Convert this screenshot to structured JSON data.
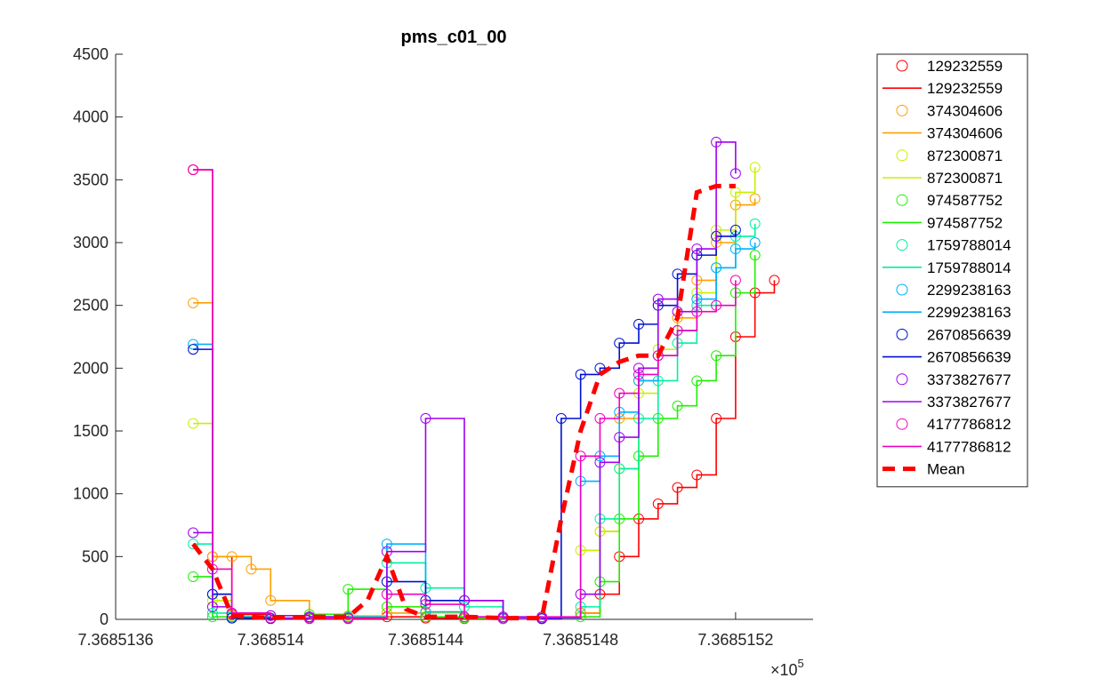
{
  "chart_data": {
    "type": "scatter",
    "title": "pms_c01_00",
    "xlabel": "",
    "ylabel": "",
    "x_exponent_label": "×10",
    "x_exponent_power": "5",
    "xlim": [
      7.3685136,
      7.3685154
    ],
    "ylim": [
      0,
      4500
    ],
    "x_ticks": [
      7.3685136,
      7.368514,
      7.3685144,
      7.3685148,
      7.3685152
    ],
    "x_tick_labels": [
      "7.3685136",
      "7.368514",
      "7.3685144",
      "7.3685148",
      "7.3685152"
    ],
    "y_ticks": [
      0,
      500,
      1000,
      1500,
      2000,
      2500,
      3000,
      3500,
      4000,
      4500
    ],
    "y_tick_labels": [
      "0",
      "500",
      "1000",
      "1500",
      "2000",
      "2500",
      "3000",
      "3500",
      "4000",
      "4500"
    ],
    "grid": false,
    "legend_position": "outside-right",
    "series": [
      {
        "name": "129232559",
        "color": "#ff0000",
        "x": [
          7.3685138,
          7.36851385,
          7.3685139,
          7.368514,
          7.3685141,
          7.3685142,
          7.3685143,
          7.3685144,
          7.3685145,
          7.3685146,
          7.3685147,
          7.3685148,
          7.36851485,
          7.3685149,
          7.36851495,
          7.368515,
          7.36851505,
          7.3685151,
          7.36851515,
          7.3685152,
          7.36851525,
          7.3685153
        ],
        "y": [
          3580,
          500,
          40,
          10,
          5,
          5,
          20,
          10,
          5,
          5,
          5,
          50,
          200,
          500,
          800,
          920,
          1050,
          1150,
          1600,
          2250,
          2600,
          2700
        ]
      },
      {
        "name": "374304606",
        "color": "#ff9f00",
        "x": [
          7.3685138,
          7.36851385,
          7.3685139,
          7.36851395,
          7.368514,
          7.3685141,
          7.3685142,
          7.3685143,
          7.3685144,
          7.3685145,
          7.3685146,
          7.3685147,
          7.3685148,
          7.36851485,
          7.3685149,
          7.36851495,
          7.368515,
          7.36851505,
          7.3685151,
          7.36851515,
          7.3685152,
          7.36851525
        ],
        "y": [
          2520,
          500,
          500,
          400,
          150,
          20,
          20,
          50,
          20,
          10,
          5,
          5,
          50,
          700,
          1600,
          1900,
          2100,
          2400,
          2700,
          3000,
          3300,
          3350
        ]
      },
      {
        "name": "872300871",
        "color": "#c8f000",
        "x": [
          7.3685138,
          7.36851385,
          7.3685139,
          7.368514,
          7.3685141,
          7.3685142,
          7.3685143,
          7.3685144,
          7.3685145,
          7.3685146,
          7.3685147,
          7.3685148,
          7.36851485,
          7.3685149,
          7.36851495,
          7.368515,
          7.36851505,
          7.3685151,
          7.36851515,
          7.3685152,
          7.36851525
        ],
        "y": [
          1560,
          150,
          30,
          10,
          10,
          30,
          100,
          50,
          10,
          5,
          10,
          550,
          700,
          1200,
          1800,
          2150,
          2300,
          2600,
          3100,
          3400,
          3600
        ]
      },
      {
        "name": "974587752",
        "color": "#1cf000",
        "x": [
          7.3685138,
          7.36851385,
          7.3685139,
          7.368514,
          7.3685141,
          7.3685142,
          7.3685143,
          7.3685144,
          7.3685145,
          7.3685146,
          7.3685147,
          7.3685148,
          7.36851485,
          7.3685149,
          7.36851495,
          7.368515,
          7.36851505,
          7.3685151,
          7.36851515,
          7.3685152,
          7.36851525
        ],
        "y": [
          340,
          20,
          10,
          30,
          40,
          240,
          100,
          20,
          10,
          10,
          5,
          20,
          300,
          800,
          1300,
          1600,
          1700,
          1900,
          2100,
          2600,
          2900
        ]
      },
      {
        "name": "1759788014",
        "color": "#00f0a0",
        "x": [
          7.3685138,
          7.36851385,
          7.3685139,
          7.368514,
          7.3685141,
          7.3685142,
          7.3685143,
          7.3685144,
          7.3685145,
          7.3685146,
          7.3685147,
          7.3685148,
          7.36851485,
          7.3685149,
          7.36851495,
          7.368515,
          7.36851505,
          7.3685151,
          7.36851515,
          7.3685152,
          7.36851525
        ],
        "y": [
          600,
          50,
          20,
          10,
          10,
          10,
          450,
          250,
          100,
          10,
          10,
          100,
          800,
          1200,
          1600,
          1900,
          2200,
          2500,
          2800,
          3050,
          3150
        ]
      },
      {
        "name": "2299238163",
        "color": "#00b0ff",
        "x": [
          7.3685138,
          7.36851385,
          7.3685139,
          7.368514,
          7.3685141,
          7.3685142,
          7.3685143,
          7.3685144,
          7.3685145,
          7.3685146,
          7.3685147,
          7.3685148,
          7.36851485,
          7.3685149,
          7.36851495,
          7.368515,
          7.36851505,
          7.3685151,
          7.36851515,
          7.3685152,
          7.36851525
        ],
        "y": [
          2190,
          200,
          20,
          10,
          10,
          20,
          600,
          60,
          20,
          5,
          10,
          1100,
          1300,
          1650,
          1900,
          2100,
          2300,
          2550,
          2800,
          2950,
          3000
        ]
      },
      {
        "name": "2670856639",
        "color": "#0010d0",
        "x": [
          7.3685138,
          7.36851385,
          7.3685139,
          7.368514,
          7.3685141,
          7.3685142,
          7.3685143,
          7.3685144,
          7.3685145,
          7.3685146,
          7.3685147,
          7.36851475,
          7.3685148,
          7.36851485,
          7.3685149,
          7.36851495,
          7.368515,
          7.36851505,
          7.3685151,
          7.36851515,
          7.3685152
        ],
        "y": [
          2150,
          200,
          10,
          5,
          20,
          10,
          300,
          150,
          150,
          10,
          5,
          1600,
          1950,
          2000,
          2200,
          2350,
          2500,
          2750,
          2900,
          3050,
          3100
        ]
      },
      {
        "name": "3373827677",
        "color": "#a000f0",
        "x": [
          7.3685138,
          7.36851385,
          7.3685139,
          7.368514,
          7.3685141,
          7.3685142,
          7.3685143,
          7.3685144,
          7.3685145,
          7.3685146,
          7.3685147,
          7.3685148,
          7.36851485,
          7.3685149,
          7.36851495,
          7.368515,
          7.36851505,
          7.3685151,
          7.36851515,
          7.3685152
        ],
        "y": [
          690,
          100,
          50,
          30,
          20,
          10,
          540,
          1600,
          150,
          20,
          10,
          200,
          1250,
          1450,
          2000,
          2550,
          2450,
          2950,
          3800,
          3550
        ]
      },
      {
        "name": "4177786812",
        "color": "#f000c0",
        "x": [
          7.3685138,
          7.36851385,
          7.3685139,
          7.368514,
          7.3685141,
          7.3685142,
          7.3685143,
          7.3685144,
          7.3685145,
          7.3685146,
          7.3685147,
          7.3685148,
          7.36851485,
          7.3685149,
          7.36851495,
          7.368515,
          7.36851505,
          7.3685151,
          7.36851515,
          7.3685152
        ],
        "y": [
          3580,
          400,
          50,
          10,
          10,
          10,
          200,
          120,
          20,
          10,
          20,
          1300,
          1600,
          1800,
          1950,
          2100,
          2300,
          2450,
          2500,
          2700
        ]
      }
    ],
    "mean": {
      "name": "Mean",
      "color": "#ff0000",
      "x": [
        7.3685138,
        7.36851385,
        7.3685139,
        7.368514,
        7.3685141,
        7.3685142,
        7.36851425,
        7.3685143,
        7.36851435,
        7.3685144,
        7.3685145,
        7.3685146,
        7.3685147,
        7.36851475,
        7.3685148,
        7.36851485,
        7.3685149,
        7.36851495,
        7.368515,
        7.36851505,
        7.3685151,
        7.36851515,
        7.3685152
      ],
      "y": [
        600,
        400,
        30,
        10,
        20,
        20,
        150,
        500,
        80,
        20,
        20,
        10,
        10,
        800,
        1500,
        1950,
        2050,
        2100,
        2100,
        2400,
        3400,
        3450,
        3450
      ]
    }
  }
}
